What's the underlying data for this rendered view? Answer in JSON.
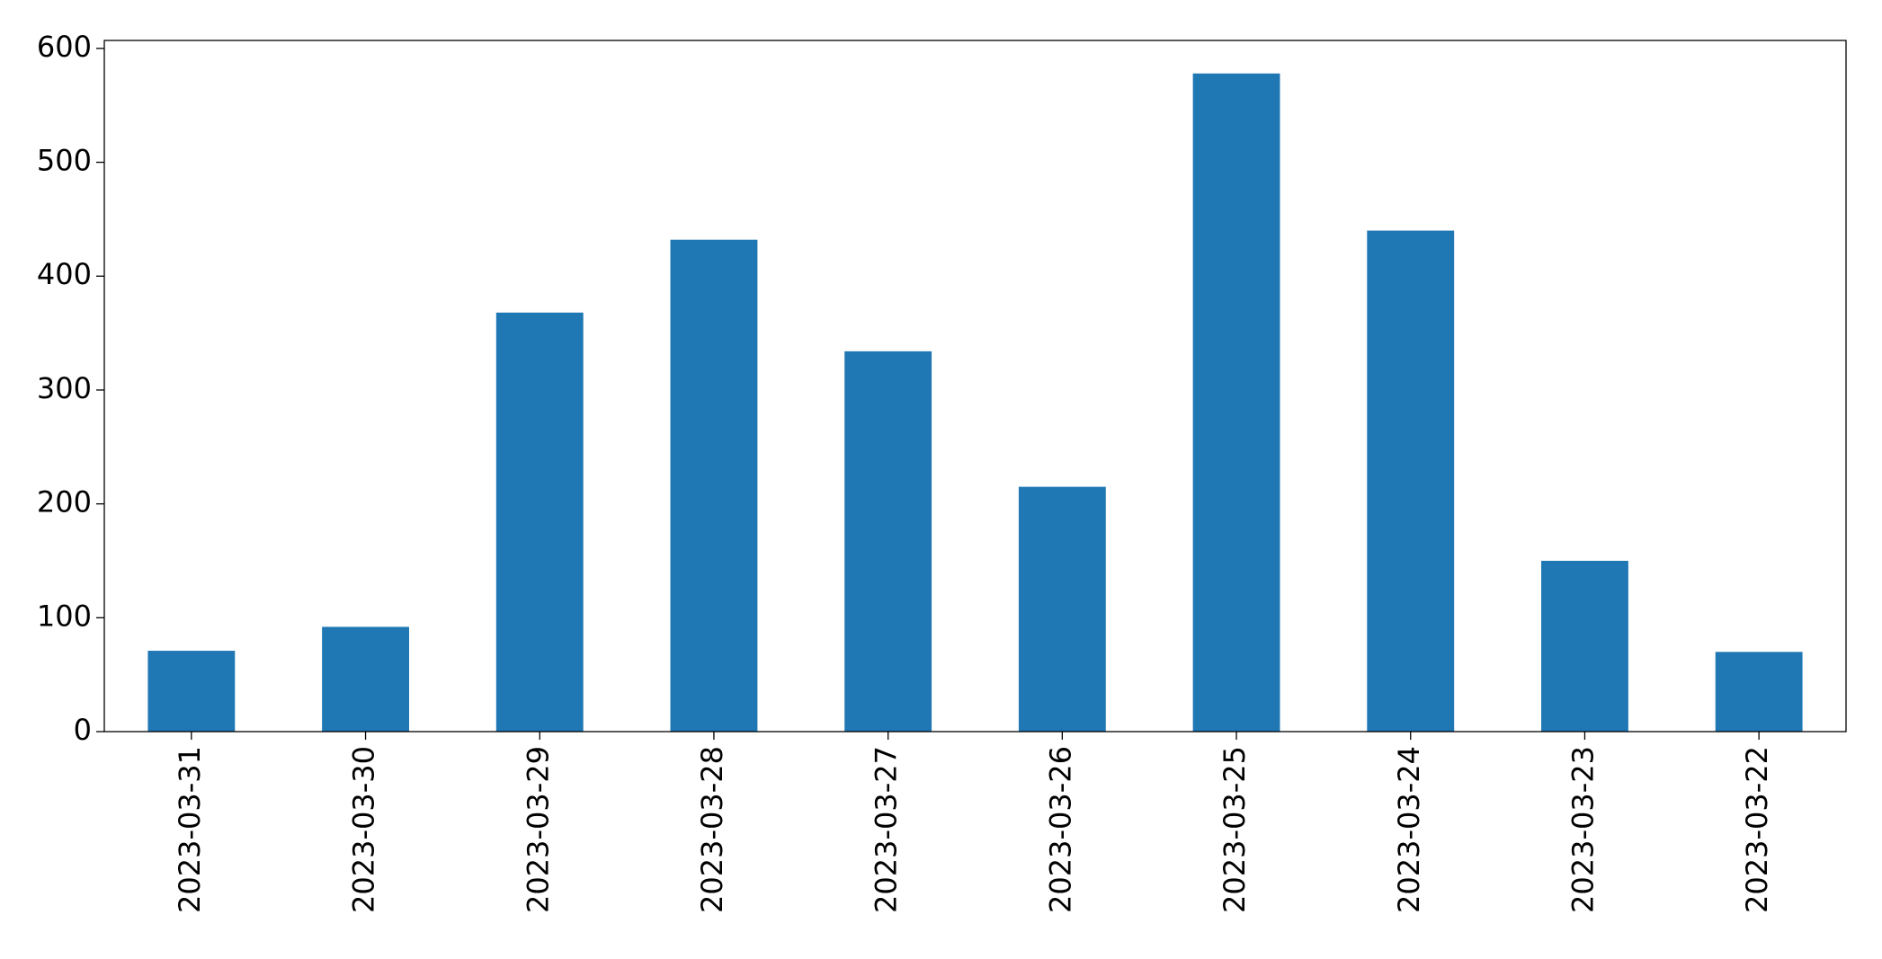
{
  "chart_data": {
    "type": "bar",
    "categories": [
      "2023-03-31",
      "2023-03-30",
      "2023-03-29",
      "2023-03-28",
      "2023-03-27",
      "2023-03-26",
      "2023-03-25",
      "2023-03-24",
      "2023-03-23",
      "2023-03-22"
    ],
    "values": [
      71,
      92,
      368,
      432,
      334,
      215,
      578,
      440,
      150,
      70
    ],
    "color": "#1f77b4",
    "ylim": [
      0,
      607
    ],
    "yticks": [
      0,
      100,
      200,
      300,
      400,
      500,
      600
    ],
    "grid": false
  }
}
